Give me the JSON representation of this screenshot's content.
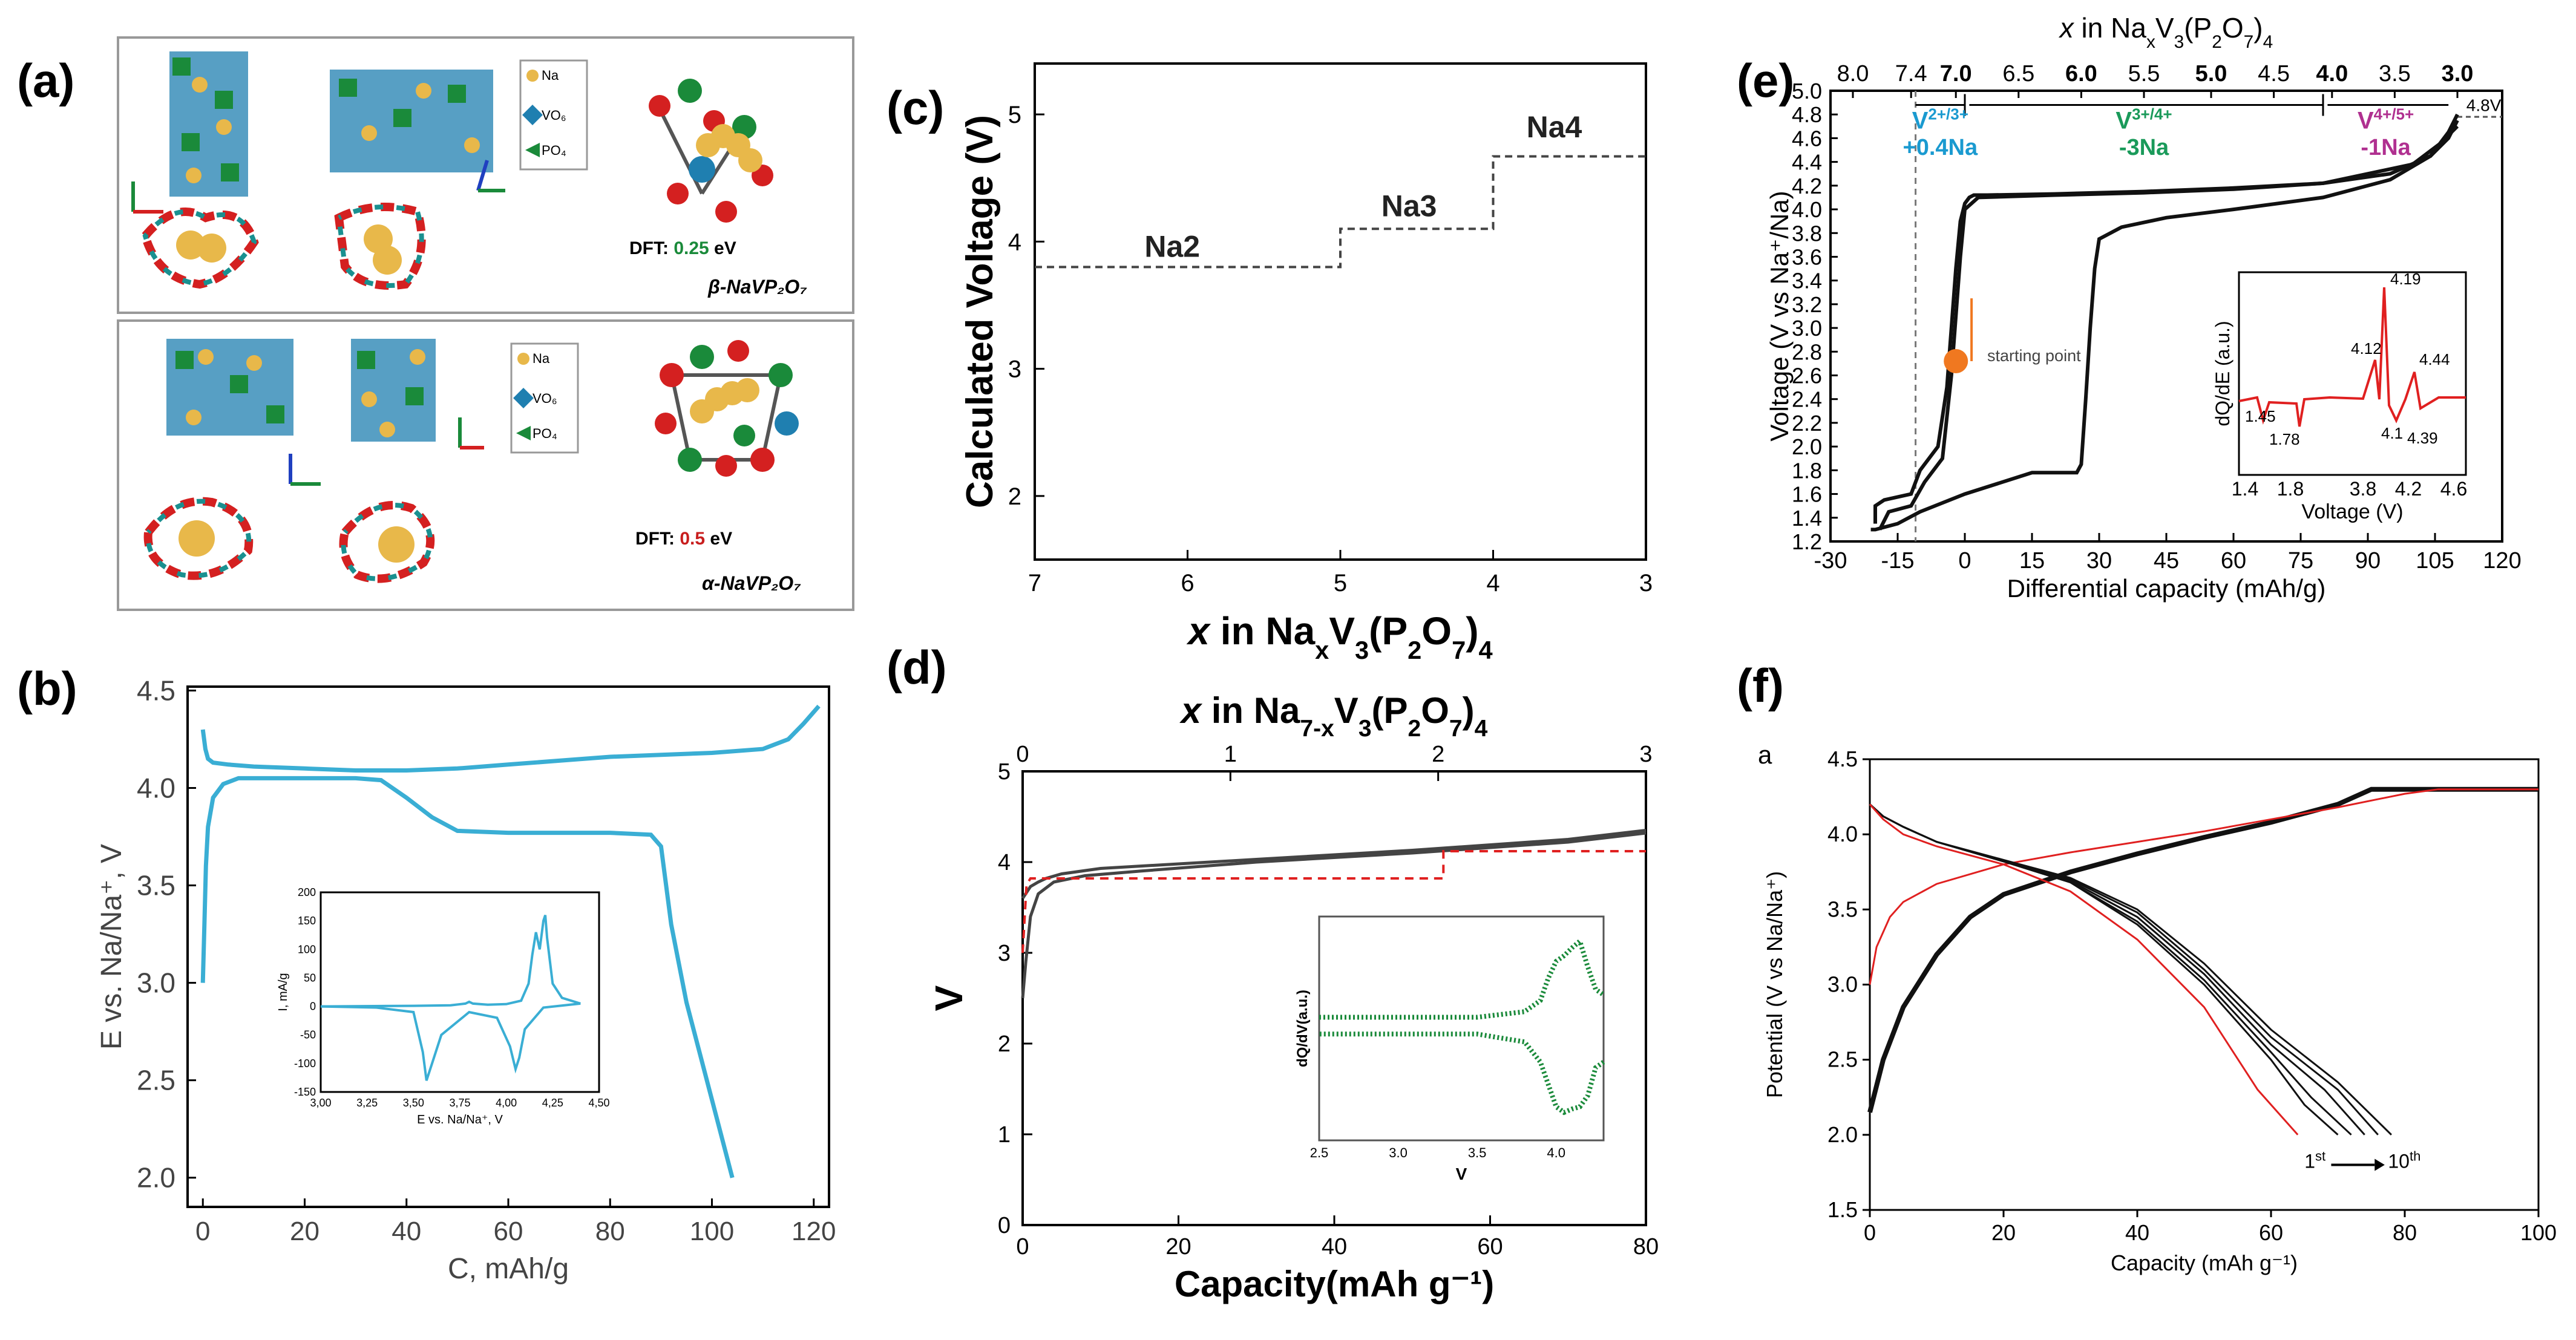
{
  "panel_labels": {
    "a": "(a)",
    "b": "(b)",
    "c": "(c)",
    "d": "(d)",
    "e": "(e)",
    "f": "(f)"
  },
  "panel_a": {
    "legend": {
      "na": "Na",
      "vo": "VO₆",
      "po": "PO₄"
    },
    "beta_dft_prefix": "DFT: ",
    "beta_dft_value": "0.25",
    "beta_dft_unit": " eV",
    "beta_phase": "β-NaVP₂O₇",
    "alpha_dft_prefix": "DFT: ",
    "alpha_dft_value": "0.5",
    "alpha_dft_unit": " eV",
    "alpha_phase": "α-NaVP₂O₇",
    "colors": {
      "v": "#1f7fb0",
      "p": "#1a8a3a",
      "na": "#e8b84a",
      "o": "#d42020",
      "dft_beta": "#1a8a3a",
      "dft_alpha": "#c81e1e"
    }
  },
  "chart_data": [
    {
      "id": "b",
      "type": "line",
      "xlabel": "C, mAh/g",
      "ylabel": "E vs. Na/Na⁺, V",
      "xlim": [
        -3,
        123
      ],
      "ylim": [
        1.85,
        4.52
      ],
      "xticks": [
        "0",
        "20",
        "40",
        "60",
        "80",
        "100",
        "120"
      ],
      "yticks": [
        "2.0",
        "2.5",
        "3.0",
        "3.5",
        "4.0",
        "4.5"
      ],
      "series": [
        {
          "name": "charge",
          "x": [
            0,
            0.5,
            1,
            2,
            5,
            10,
            20,
            30,
            40,
            50,
            60,
            70,
            80,
            90,
            100,
            110,
            115,
            118,
            121
          ],
          "y": [
            4.3,
            4.2,
            4.15,
            4.13,
            4.12,
            4.11,
            4.1,
            4.09,
            4.09,
            4.1,
            4.12,
            4.14,
            4.16,
            4.17,
            4.18,
            4.2,
            4.25,
            4.33,
            4.42
          ]
        },
        {
          "name": "discharge",
          "x": [
            0,
            0.3,
            0.6,
            1,
            2,
            4,
            7,
            10,
            20,
            30,
            35,
            40,
            45,
            50,
            60,
            70,
            80,
            88,
            90,
            92,
            95,
            100,
            104
          ],
          "y": [
            3.0,
            3.3,
            3.6,
            3.8,
            3.95,
            4.02,
            4.05,
            4.05,
            4.05,
            4.05,
            4.04,
            3.95,
            3.85,
            3.78,
            3.77,
            3.77,
            3.77,
            3.76,
            3.7,
            3.3,
            2.9,
            2.4,
            2.0
          ]
        }
      ],
      "inset": {
        "xlabel": "E vs. Na/Na⁺, V",
        "ylabel": "I, mA/g",
        "xlim": [
          3.0,
          4.5
        ],
        "ylim": [
          -150,
          200
        ],
        "xticks": [
          "3,00",
          "3,25",
          "3,50",
          "3,75",
          "4,00",
          "4,25",
          "4,50"
        ],
        "yticks": [
          "200",
          "150",
          "100",
          "50",
          "0",
          "-50",
          "-100",
          "-150"
        ],
        "series": [
          {
            "name": "cv-anodic",
            "x": [
              3.0,
              3.5,
              3.7,
              3.78,
              3.8,
              3.82,
              3.9,
              4.0,
              4.08,
              4.12,
              4.14,
              4.16,
              4.18,
              4.2,
              4.21,
              4.22,
              4.25,
              4.3,
              4.4
            ],
            "y": [
              0,
              1,
              2,
              5,
              8,
              5,
              3,
              4,
              10,
              40,
              90,
              130,
              100,
              150,
              160,
              120,
              40,
              15,
              5
            ]
          },
          {
            "name": "cv-cathodic",
            "x": [
              4.4,
              4.2,
              4.1,
              4.07,
              4.05,
              4.02,
              3.95,
              3.8,
              3.65,
              3.6,
              3.57,
              3.55,
              3.5,
              3.3,
              3.0
            ],
            "y": [
              5,
              -2,
              -40,
              -90,
              -110,
              -70,
              -20,
              -10,
              -50,
              -100,
              -130,
              -80,
              -10,
              -2,
              0
            ]
          }
        ]
      }
    },
    {
      "id": "c",
      "type": "line",
      "ylabel": "Calculated Voltage (V)",
      "xlabel_parts": [
        "x",
        " in Na",
        "x",
        "V",
        "3",
        "(P",
        "2",
        "O",
        "7",
        ")",
        "4"
      ],
      "xlim": [
        7,
        3
      ],
      "ylim": [
        1.5,
        5.4
      ],
      "xticks": [
        "7",
        "6",
        "5",
        "4",
        "3"
      ],
      "yticks": [
        "2",
        "3",
        "4",
        "5"
      ],
      "series": [
        {
          "name": "steps",
          "x": [
            7,
            5,
            5,
            4,
            4,
            3
          ],
          "y": [
            3.8,
            3.8,
            4.1,
            4.1,
            4.67,
            4.67
          ]
        }
      ],
      "annotations": [
        "Na2",
        "Na3",
        "Na4"
      ]
    },
    {
      "id": "d",
      "type": "line",
      "ylabel": "V",
      "xlabel": "Capacity(mAh g⁻¹)",
      "top_axis_parts": [
        "x",
        " in Na",
        "7-x",
        "V",
        "3",
        "(P",
        "2",
        "O",
        "7",
        ")",
        "4"
      ],
      "xlim": [
        0,
        80
      ],
      "ylim": [
        0,
        5
      ],
      "xticks": [
        "0",
        "20",
        "40",
        "60",
        "80"
      ],
      "top_ticks": [
        "0",
        "1",
        "2",
        "3"
      ],
      "yticks": [
        "0",
        "1",
        "2",
        "3",
        "4",
        "5"
      ],
      "series": [
        {
          "name": "curve-1",
          "x": [
            0,
            0.4,
            1,
            2,
            4,
            8,
            15,
            30,
            50,
            70,
            80
          ],
          "y": [
            2.5,
            2.9,
            3.4,
            3.65,
            3.78,
            3.85,
            3.9,
            4.0,
            4.1,
            4.22,
            4.32
          ]
        },
        {
          "name": "curve-2",
          "x": [
            0,
            1,
            2,
            3,
            5,
            10,
            30,
            50,
            70,
            80
          ],
          "y": [
            3.6,
            3.73,
            3.78,
            3.82,
            3.87,
            3.93,
            4.03,
            4.13,
            4.25,
            4.35
          ]
        },
        {
          "name": "calculated",
          "x": [
            0,
            0.5,
            1,
            54,
            54,
            80
          ],
          "y": [
            3.0,
            3.75,
            3.82,
            3.82,
            4.12,
            4.12
          ]
        }
      ],
      "inset": {
        "xlabel": "V",
        "ylabel": "dQ/dV(a.u.)",
        "xlim": [
          2.5,
          4.3
        ],
        "xticks": [
          "2.5",
          "3.0",
          "3.5",
          "4.0"
        ]
      }
    },
    {
      "id": "e",
      "type": "line",
      "ylabel": "Voltage (V vs Na⁺/Na)",
      "xlabel": "Differential capacity (mAh/g)",
      "top_axis_parts": [
        "x",
        " in Na",
        "x",
        "V",
        "3",
        "(P",
        "2",
        "O",
        "7",
        ")",
        "4"
      ],
      "xlim": [
        -30,
        120
      ],
      "ylim": [
        1.2,
        5.0
      ],
      "xticks": [
        "-30",
        "-15",
        "0",
        "15",
        "30",
        "45",
        "60",
        "75",
        "90",
        "105",
        "120"
      ],
      "yticks": [
        "1.2",
        "1.6",
        "2.0",
        "2.4",
        "2.8",
        "3.2",
        "3.6",
        "4.0",
        "4.4",
        "4.8"
      ],
      "ytick_labels_extra": [
        "1.4",
        "1.8",
        "2.2",
        "2.6",
        "3.0",
        "3.4",
        "3.8",
        "4.2",
        "4.6",
        "5.0"
      ],
      "top_ticks": [
        "8.0",
        "7.4",
        "7.0",
        "6.5",
        "6.0",
        "5.5",
        "5.0",
        "4.5",
        "4.0",
        "3.5",
        "3.0"
      ],
      "series": [
        {
          "name": "cycle-upper",
          "x": [
            -20,
            -20,
            -18,
            -12,
            -10,
            -6,
            -4,
            -2,
            -1,
            0,
            1,
            2,
            5,
            20,
            40,
            60,
            80,
            95,
            104,
            108,
            110
          ],
          "y": [
            1.35,
            1.5,
            1.55,
            1.6,
            1.8,
            2.0,
            2.5,
            3.5,
            3.9,
            4.05,
            4.1,
            4.12,
            4.12,
            4.13,
            4.15,
            4.18,
            4.22,
            4.3,
            4.45,
            4.65,
            4.8
          ]
        },
        {
          "name": "cycle-discharge",
          "x": [
            110,
            108,
            104,
            95,
            80,
            60,
            45,
            35,
            30,
            29,
            28,
            27,
            26,
            25,
            15,
            0,
            -10,
            -15,
            -20,
            -21
          ],
          "y": [
            4.75,
            4.6,
            4.45,
            4.25,
            4.1,
            4.0,
            3.93,
            3.85,
            3.75,
            3.5,
            3.0,
            2.4,
            1.85,
            1.78,
            1.78,
            1.6,
            1.45,
            1.35,
            1.3,
            1.3
          ]
        },
        {
          "name": "cycle-inner",
          "x": [
            -19,
            -17,
            -12,
            -9,
            -5,
            -3,
            -1,
            0,
            3,
            20,
            40,
            60,
            80,
            100,
            106,
            110
          ],
          "y": [
            1.3,
            1.45,
            1.5,
            1.7,
            1.9,
            2.6,
            3.6,
            4.0,
            4.1,
            4.12,
            4.14,
            4.17,
            4.22,
            4.38,
            4.55,
            4.7
          ]
        }
      ],
      "annotations": {
        "region1_main": "V",
        "region1_sup": "2+/3+",
        "region1_sub": "+0.4Na",
        "region2_main": "V",
        "region2_sup": "3+/4+",
        "region2_sub": "-3Na",
        "region3_main": "V",
        "region3_sup": "4+/5+",
        "region3_sub": "-1Na",
        "cutoff": "4.8V",
        "start": "starting point"
      },
      "inset": {
        "xlabel": "Voltage (V)",
        "ylabel": "dQ/dE (a.u.)",
        "xlim": [
          1.4,
          4.6
        ],
        "xticks": [
          "1.4",
          "1.8",
          "3.8",
          "4.2",
          "4.6"
        ],
        "peak_labels": [
          "4.19",
          "4.12",
          "4.44",
          "1.45",
          "1.78",
          "4.1",
          "4.39"
        ]
      }
    },
    {
      "id": "f",
      "type": "line",
      "ylabel": "Potential (V vs Na/Na⁺)",
      "xlabel": "Capacity (mAh g⁻¹)",
      "sublabel": "a",
      "xlim": [
        0,
        100
      ],
      "ylim": [
        1.5,
        4.5
      ],
      "xticks": [
        "0",
        "20",
        "40",
        "60",
        "80",
        "100"
      ],
      "yticks": [
        "1.5",
        "2.0",
        "2.5",
        "3.0",
        "3.5",
        "4.0",
        "4.5"
      ],
      "series": [
        {
          "name": "charge-black",
          "x": [
            0,
            2,
            5,
            10,
            15,
            20,
            30,
            40,
            50,
            60,
            70,
            75,
            100
          ],
          "y": [
            2.15,
            2.5,
            2.85,
            3.2,
            3.45,
            3.6,
            3.75,
            3.87,
            3.98,
            4.08,
            4.2,
            4.3,
            4.3
          ]
        },
        {
          "name": "charge-red",
          "x": [
            0,
            1,
            3,
            5,
            10,
            20,
            30,
            40,
            50,
            60,
            70,
            80,
            85,
            100
          ],
          "y": [
            3.0,
            3.25,
            3.45,
            3.55,
            3.67,
            3.8,
            3.88,
            3.95,
            4.02,
            4.1,
            4.18,
            4.27,
            4.3,
            4.3
          ]
        },
        {
          "name": "discharge-black-1",
          "x": [
            0,
            2,
            5,
            10,
            20,
            30,
            40,
            50,
            60,
            65,
            70
          ],
          "y": [
            4.2,
            4.12,
            4.05,
            3.95,
            3.82,
            3.68,
            3.4,
            3.0,
            2.5,
            2.2,
            2.0
          ]
        },
        {
          "name": "discharge-black-2",
          "x": [
            0,
            2,
            5,
            10,
            20,
            30,
            40,
            50,
            60,
            66,
            72
          ],
          "y": [
            4.2,
            4.12,
            4.05,
            3.95,
            3.82,
            3.68,
            3.42,
            3.03,
            2.55,
            2.25,
            2.0
          ]
        },
        {
          "name": "discharge-black-3",
          "x": [
            0,
            2,
            5,
            10,
            20,
            30,
            40,
            50,
            60,
            68,
            74
          ],
          "y": [
            4.2,
            4.12,
            4.05,
            3.95,
            3.82,
            3.69,
            3.45,
            3.07,
            2.6,
            2.3,
            2.0
          ]
        },
        {
          "name": "discharge-black-4",
          "x": [
            0,
            2,
            5,
            10,
            20,
            30,
            40,
            50,
            60,
            70,
            76
          ],
          "y": [
            4.2,
            4.12,
            4.05,
            3.95,
            3.82,
            3.7,
            3.48,
            3.1,
            2.65,
            2.3,
            2.0
          ]
        },
        {
          "name": "discharge-black-5",
          "x": [
            0,
            2,
            5,
            10,
            20,
            30,
            40,
            50,
            60,
            70,
            78
          ],
          "y": [
            4.2,
            4.12,
            4.05,
            3.95,
            3.83,
            3.71,
            3.5,
            3.14,
            2.7,
            2.35,
            2.0
          ]
        },
        {
          "name": "discharge-red",
          "x": [
            0,
            2,
            5,
            10,
            20,
            30,
            40,
            50,
            58,
            64
          ],
          "y": [
            4.2,
            4.1,
            4.0,
            3.92,
            3.8,
            3.62,
            3.3,
            2.85,
            2.3,
            2.0
          ]
        }
      ],
      "annotations": {
        "first": "1",
        "first_sup": "st",
        "last": "10",
        "last_sup": "th"
      }
    }
  ],
  "colors": {
    "axis": "#000000",
    "blue": "#3aaed4",
    "red": "#e02020",
    "green": "#1a8a3a",
    "grey": "#555555",
    "teal": "#1a9ad0",
    "purple": "#b03090",
    "orange": "#f07820",
    "bold_green": "#1a9a5a"
  }
}
